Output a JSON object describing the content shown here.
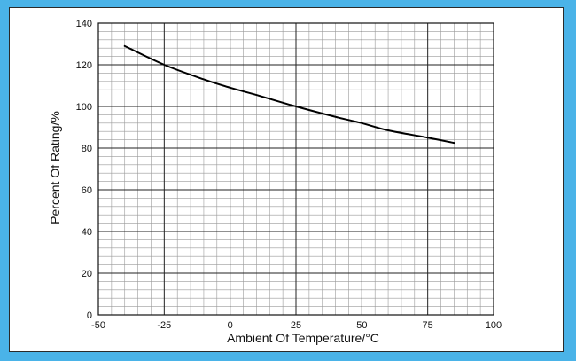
{
  "chart_data": {
    "type": "line",
    "xlabel": "Ambient Of Temperature/°C",
    "ylabel": "Percent Of Rating/%",
    "xlim": [
      -50,
      100
    ],
    "ylim": [
      0,
      140
    ],
    "x_ticks": [
      "-50",
      "-25",
      "0",
      "25",
      "50",
      "75",
      "100"
    ],
    "y_ticks": [
      "0",
      "20",
      "40",
      "60",
      "80",
      "100",
      "120",
      "140"
    ],
    "grid": true,
    "series": [
      {
        "x": [
          -40,
          -25,
          -10,
          0,
          10,
          25,
          40,
          50,
          60,
          75,
          85
        ],
        "y": [
          129,
          120,
          113,
          109,
          105.5,
          100,
          95,
          92,
          88.5,
          85,
          82.5
        ]
      }
    ]
  },
  "colors": {
    "page_background": "#4ab3e8",
    "major_grid": "#222222",
    "minor_grid": "#9a9a9a",
    "line": "#000000"
  }
}
